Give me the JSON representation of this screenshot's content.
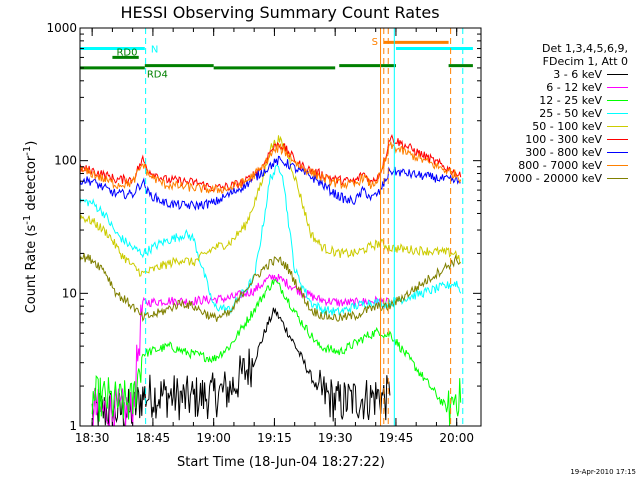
{
  "chart_data": {
    "type": "line",
    "title": "HESSI Observing Summary Count Rates",
    "xlabel": "Start Time (18-Jun-04 18:27:22)",
    "ylabel": "Count Rate (s⁻¹ detector⁻¹)",
    "ylabel_main": "Count Rate (s",
    "ylabel_sup1": "-1",
    "ylabel_mid": " detector",
    "ylabel_sup2": "-1",
    "ylabel_end": ")",
    "yscale": "log",
    "ylim": [
      1,
      1000
    ],
    "xlim_minutes": [
      -3,
      96
    ],
    "x_ticks": [
      {
        "label": "18:30",
        "minutes": 0
      },
      {
        "label": "18:45",
        "minutes": 15
      },
      {
        "label": "19:00",
        "minutes": 30
      },
      {
        "label": "19:15",
        "minutes": 45
      },
      {
        "label": "19:30",
        "minutes": 60
      },
      {
        "label": "19:45",
        "minutes": 75
      },
      {
        "label": "20:00",
        "minutes": 90
      }
    ],
    "y_ticks": [
      {
        "label": "1",
        "value": 1
      },
      {
        "label": "10",
        "value": 10
      },
      {
        "label": "100",
        "value": 100
      },
      {
        "label": "1000",
        "value": 1000
      }
    ],
    "legend_placement": "right",
    "legend_header": [
      "Det 1,3,4,5,6,9,",
      "FDecim 1, Att 0"
    ],
    "series": [
      {
        "name": "3 - 6 keV",
        "color": "#000000",
        "x": [
          0,
          10,
          12.5,
          19,
          23,
          30,
          34,
          40,
          43,
          45,
          47,
          51,
          56,
          61,
          65,
          68,
          71,
          72.5,
          73.5
        ],
        "values": [
          1.3,
          1.3,
          1.7,
          1.7,
          1.6,
          1.7,
          1.9,
          3.1,
          5.5,
          7.5,
          6.0,
          3.6,
          1.8,
          1.5,
          1.6,
          1.6,
          1.7,
          1.6,
          1.7
        ]
      },
      {
        "name": "6 - 12 keV",
        "color": "#ff00ff",
        "x": [
          0,
          10,
          12.5,
          19,
          23,
          30,
          34,
          40,
          43,
          45,
          47,
          51,
          56,
          61,
          65,
          68,
          71,
          72.5,
          73.5
        ],
        "values": [
          1.3,
          1.3,
          8.5,
          8.8,
          8.7,
          9.0,
          9.2,
          10.5,
          12.5,
          13.5,
          12.5,
          10.5,
          9.0,
          8.5,
          8.5,
          8.7,
          8.8,
          8.5,
          8.6
        ]
      },
      {
        "name": "12 - 25 keV",
        "color": "#00ff00",
        "x": [
          0,
          4,
          5,
          10,
          12.5,
          19,
          23,
          30,
          34,
          40,
          43,
          45,
          47,
          51,
          56,
          61,
          65,
          68,
          71,
          72.5,
          73.5,
          88,
          90,
          91
        ],
        "values": [
          1.6,
          1.6,
          1.5,
          1.5,
          3.5,
          4.0,
          3.6,
          3.2,
          4.0,
          7.5,
          10.5,
          12.5,
          10.5,
          6.5,
          4.0,
          3.6,
          4.2,
          4.8,
          5.2,
          4.8,
          5.0,
          1.3,
          1.8,
          1.5
        ]
      },
      {
        "name": "25 - 50 keV",
        "color": "#00ffff",
        "x": [
          -3,
          0,
          3,
          6,
          10,
          12.5,
          17,
          23,
          25,
          30,
          34,
          40,
          42,
          44,
          46,
          47,
          48,
          50,
          54,
          57,
          61,
          65,
          68,
          71,
          72.5,
          73.5,
          90,
          91
        ],
        "values": [
          50,
          48,
          40,
          28,
          22,
          20,
          24,
          28,
          26,
          8.0,
          7.5,
          13,
          30,
          75,
          90,
          82,
          45,
          15,
          8.5,
          7.5,
          7.2,
          8.0,
          8.5,
          8.5,
          8.3,
          8.5,
          12,
          10
        ]
      },
      {
        "name": "50 - 100 keV",
        "color": "#cccc00",
        "x": [
          -3,
          0,
          4,
          7,
          10,
          12.5,
          17,
          22,
          25,
          30,
          34,
          38,
          42,
          44,
          46,
          48,
          51,
          54,
          57,
          61,
          65,
          68,
          71,
          72.5,
          73.5,
          90,
          91
        ],
        "values": [
          38,
          35,
          28,
          20,
          16,
          14,
          16,
          18,
          17,
          22,
          24,
          33,
          70,
          125,
          145,
          120,
          60,
          28,
          22,
          20,
          20,
          22,
          24,
          23,
          22,
          20,
          17
        ]
      },
      {
        "name": "100 - 300 keV",
        "color": "#ff0000",
        "x": [
          -3,
          0,
          3,
          6,
          10,
          12.5,
          14,
          18,
          22,
          26,
          30,
          34,
          38,
          42,
          44,
          46,
          48,
          51,
          54,
          57,
          60,
          63,
          65,
          67,
          69,
          71,
          72.5,
          73.5,
          90,
          91
        ],
        "values": [
          88,
          84,
          78,
          72,
          72,
          102,
          84,
          72,
          70,
          68,
          62,
          64,
          70,
          90,
          118,
          135,
          120,
          94,
          84,
          78,
          72,
          70,
          70,
          80,
          68,
          80,
          110,
          150,
          80,
          75
        ]
      },
      {
        "name": "300 - 800 keV",
        "color": "#0000ff",
        "x": [
          -3,
          0,
          3,
          6,
          10,
          12.5,
          14,
          18,
          22,
          26,
          30,
          34,
          38,
          42,
          44,
          46,
          48,
          51,
          54,
          57,
          60,
          63,
          65,
          67,
          69,
          71,
          72.5,
          73.5,
          90,
          91
        ],
        "values": [
          72,
          70,
          62,
          56,
          56,
          70,
          56,
          48,
          46,
          46,
          48,
          56,
          66,
          82,
          92,
          100,
          96,
          84,
          76,
          66,
          56,
          50,
          50,
          60,
          52,
          58,
          72,
          84,
          70,
          68
        ]
      },
      {
        "name": "800 - 7000 keV",
        "color": "#ff8000",
        "x": [
          -3,
          0,
          3,
          6,
          10,
          12.5,
          14,
          18,
          22,
          26,
          30,
          34,
          38,
          42,
          44,
          46,
          48,
          51,
          54,
          57,
          60,
          63,
          65,
          67,
          69,
          71,
          72.5,
          73.5,
          90,
          91
        ],
        "values": [
          85,
          80,
          72,
          66,
          68,
          95,
          78,
          66,
          64,
          62,
          60,
          62,
          70,
          88,
          110,
          125,
          115,
          92,
          82,
          74,
          68,
          66,
          66,
          76,
          64,
          76,
          100,
          130,
          78,
          72
        ]
      },
      {
        "name": "7000 - 20000 keV",
        "color": "#808000",
        "x": [
          -3,
          0,
          3,
          6,
          10,
          12.5,
          17,
          22,
          25,
          30,
          34,
          38,
          42,
          44,
          46,
          48,
          51,
          54,
          57,
          61,
          65,
          68,
          71,
          72.5,
          73.5,
          90,
          91
        ],
        "values": [
          19,
          18,
          15,
          10,
          8.0,
          6.5,
          7.2,
          8.5,
          8.0,
          6.5,
          7.0,
          11,
          15,
          17,
          18,
          16,
          11,
          7.5,
          6.8,
          6.5,
          6.8,
          7.5,
          8.0,
          7.8,
          8.0,
          18,
          17
        ]
      }
    ],
    "annotations": {
      "bars": [
        {
          "label": "",
          "color": "#00ffff",
          "value": 700,
          "segments": [
            [
              -3,
              13
            ]
          ]
        },
        {
          "label": "",
          "color": "#00ffff",
          "value": 700,
          "segments": [
            [
              75,
              94
            ]
          ]
        },
        {
          "label": "RD0",
          "color": "#008000",
          "value": 600,
          "segments": [
            [
              5,
              11.5
            ]
          ]
        },
        {
          "label": "",
          "color": "#008000",
          "value": 500,
          "segments": [
            [
              -3,
              13
            ],
            [
              30,
              30
            ],
            [
              60,
              60
            ]
          ]
        },
        {
          "label": "RD4",
          "color": "#008000",
          "value": 520,
          "segments": [
            [
              13,
              30
            ],
            [
              61,
              75
            ],
            [
              88,
              94
            ]
          ]
        },
        {
          "label": "",
          "color": "#008000",
          "value": 500,
          "segments": [
            [
              30,
              60
            ]
          ]
        },
        {
          "label": "S",
          "color": "#ff8000",
          "value": 780,
          "segments": [
            [
              72,
              88
            ]
          ]
        }
      ],
      "n_label": "N",
      "vlines": [
        {
          "x": 13.2,
          "color": "#00ffff",
          "style": "dashed"
        },
        {
          "x": 71.2,
          "color": "#ff8000",
          "style": "solid"
        },
        {
          "x": 72.0,
          "color": "#ff8000",
          "style": "dashed"
        },
        {
          "x": 73.1,
          "color": "#ff8000",
          "style": "dashed"
        },
        {
          "x": 74.6,
          "color": "#00ffff",
          "style": "solid"
        },
        {
          "x": 88.5,
          "color": "#ff8000",
          "style": "dashed"
        },
        {
          "x": 91.5,
          "color": "#00ffff",
          "style": "dashed"
        }
      ]
    }
  },
  "footer": {
    "date_stamp": "19-Apr-2010 17:15"
  }
}
